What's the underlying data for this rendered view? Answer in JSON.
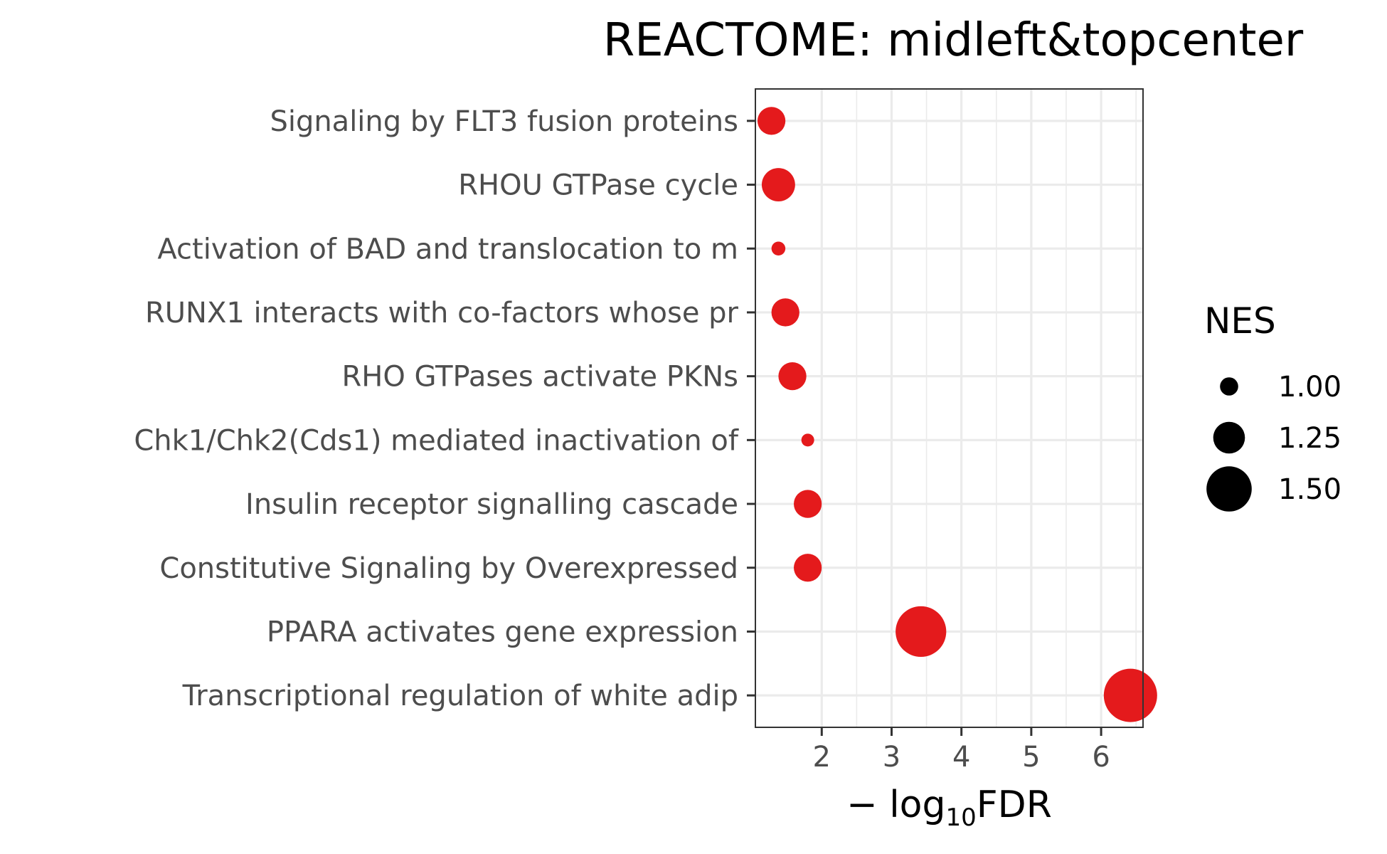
{
  "chart_data": {
    "type": "scatter",
    "title": "REACTOME: midleft&topcenter",
    "xlabel": {
      "prefix": "− log",
      "subscript": "10",
      "suffix": "FDR"
    },
    "xlim": [
      1.05,
      6.6
    ],
    "xticks": [
      2,
      3,
      4,
      5,
      6
    ],
    "grid": true,
    "legend_position": "right",
    "marker_color": "#e41a1c",
    "categories": [
      "Signaling by FLT3 fusion proteins",
      "RHOU GTPase cycle",
      "Activation of BAD and translocation to m",
      "RUNX1 interacts with co-factors whose pr",
      "RHO GTPases activate PKNs",
      "Chk1/Chk2(Cds1) mediated inactivation of",
      "Insulin receptor signalling cascade",
      "Constitutive Signaling by Overexpressed ",
      "PPARA activates gene expression",
      "Transcriptional regulation of white adip"
    ],
    "x": [
      1.28,
      1.38,
      1.38,
      1.48,
      1.58,
      1.8,
      1.8,
      1.8,
      3.42,
      6.42
    ],
    "size": [
      1.18,
      1.28,
      0.92,
      1.18,
      1.18,
      0.9,
      1.18,
      1.18,
      1.6,
      1.65
    ],
    "size_legend": {
      "title": "NES",
      "values": [
        1.0,
        1.25,
        1.5
      ],
      "labels": [
        "1.00",
        "1.25",
        "1.50"
      ],
      "color": "#000000"
    }
  }
}
